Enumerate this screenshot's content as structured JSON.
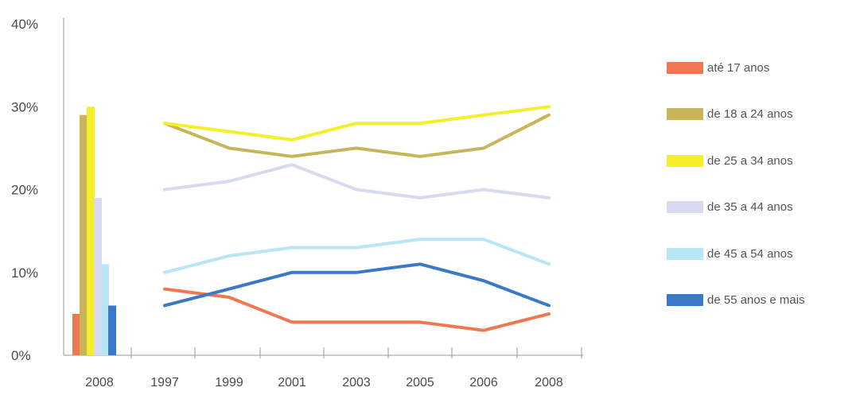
{
  "chart_data": [
    {
      "type": "bar",
      "categories": [
        "2008"
      ],
      "series": [
        {
          "name": "até 17 anos",
          "values": [
            5
          ],
          "color": "#f07850"
        },
        {
          "name": "de 18 a 24 anos",
          "values": [
            29
          ],
          "color": "#c8b45a"
        },
        {
          "name": "de 25 a 34 anos",
          "values": [
            30
          ],
          "color": "#f5ee2a"
        },
        {
          "name": "de 35 a 44 anos",
          "values": [
            19
          ],
          "color": "#d8daf0"
        },
        {
          "name": "de 45 a 54 anos",
          "values": [
            11
          ],
          "color": "#b8e6f5"
        },
        {
          "name": "de 55 anos e mais",
          "values": [
            6
          ],
          "color": "#3a78c8"
        }
      ],
      "ylim": [
        0,
        40
      ],
      "yticks": [
        "0%",
        "10%",
        "20%",
        "30%",
        "40%"
      ]
    },
    {
      "type": "line",
      "x": [
        "1997",
        "1999",
        "2001",
        "2003",
        "2005",
        "2006",
        "2008"
      ],
      "series": [
        {
          "name": "até 17 anos",
          "values": [
            8,
            7,
            4,
            4,
            4,
            3,
            5
          ],
          "color": "#f07850"
        },
        {
          "name": "de 18 a 24 anos",
          "values": [
            28,
            25,
            24,
            25,
            24,
            25,
            29
          ],
          "color": "#c8b45a"
        },
        {
          "name": "de 25 a 34 anos",
          "values": [
            28,
            27,
            26,
            28,
            28,
            29,
            30
          ],
          "color": "#f5ee2a"
        },
        {
          "name": "de 35 a 44 anos",
          "values": [
            20,
            21,
            23,
            20,
            19,
            20,
            19
          ],
          "color": "#d8daf0"
        },
        {
          "name": "de 45 a 54 anos",
          "values": [
            10,
            12,
            13,
            13,
            14,
            14,
            11
          ],
          "color": "#b8e6f5"
        },
        {
          "name": "de 55 anos e mais",
          "values": [
            6,
            8,
            10,
            10,
            11,
            9,
            6
          ],
          "color": "#3a78c8"
        }
      ],
      "ylim": [
        0,
        40
      ]
    }
  ],
  "legend": {
    "placement": "right",
    "items": [
      {
        "label": "até 17 anos",
        "color": "#f07850"
      },
      {
        "label": "de 18 a 24 anos",
        "color": "#c8b45a"
      },
      {
        "label": "de 25 a 34 anos",
        "color": "#f5ee2a"
      },
      {
        "label": "de 35 a 44 anos",
        "color": "#d8daf0"
      },
      {
        "label": "de 45 a 54 anos",
        "color": "#b8e6f5"
      },
      {
        "label": "de 55 anos e mais",
        "color": "#3a78c8"
      }
    ]
  }
}
